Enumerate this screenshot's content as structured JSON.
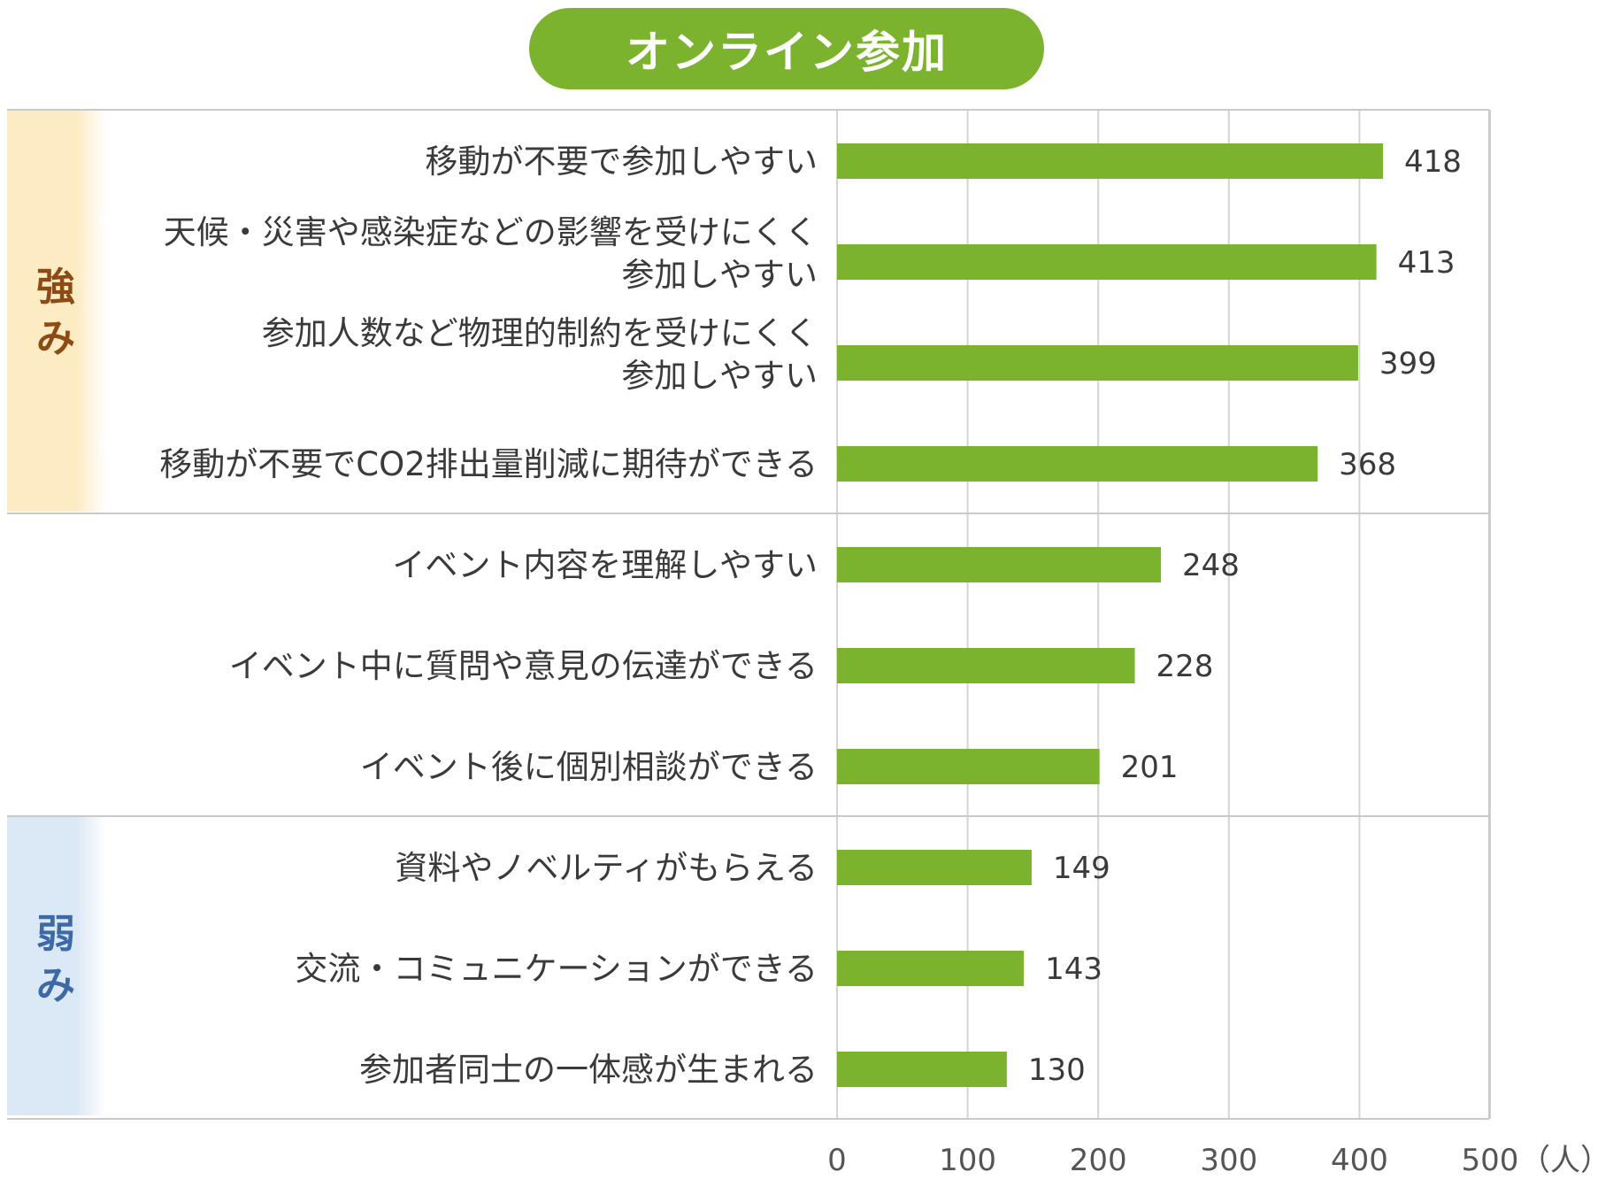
{
  "title": "オンライン参加",
  "groups": {
    "strengths": "強み",
    "weaknesses": "弱み"
  },
  "colors": {
    "bar": "#7bb22e",
    "title_bg": "#7bb22e",
    "strength_band": "#fdebc4",
    "weakness_band": "#dbe8f5",
    "grid": "#d4d4d4",
    "separator": "#c9c9c9"
  },
  "chart_data": {
    "type": "bar",
    "orientation": "horizontal",
    "categories": [
      [
        "移動が不要で参加しやすい"
      ],
      [
        "天候・災害や感染症などの影響を受けにくく",
        "参加しやすい"
      ],
      [
        "参加人数など物理的制約を受けにくく",
        "参加しやすい"
      ],
      [
        "移動が不要でCO2排出量削減に期待ができる"
      ],
      [
        "イベント内容を理解しやすい"
      ],
      [
        "イベント中に質問や意見の伝達ができる"
      ],
      [
        "イベント後に個別相談ができる"
      ],
      [
        "資料やノベルティがもらえる"
      ],
      [
        "交流・コミュニケーションができる"
      ],
      [
        "参加者同士の一体感が生まれる"
      ]
    ],
    "values": [
      418,
      413,
      399,
      368,
      248,
      228,
      201,
      149,
      143,
      130
    ],
    "xlim": [
      0,
      500
    ],
    "xticks": [
      0,
      100,
      200,
      300,
      400,
      500
    ],
    "xunit": "（人）",
    "grid": true,
    "group_breaks": [
      4,
      7
    ]
  }
}
